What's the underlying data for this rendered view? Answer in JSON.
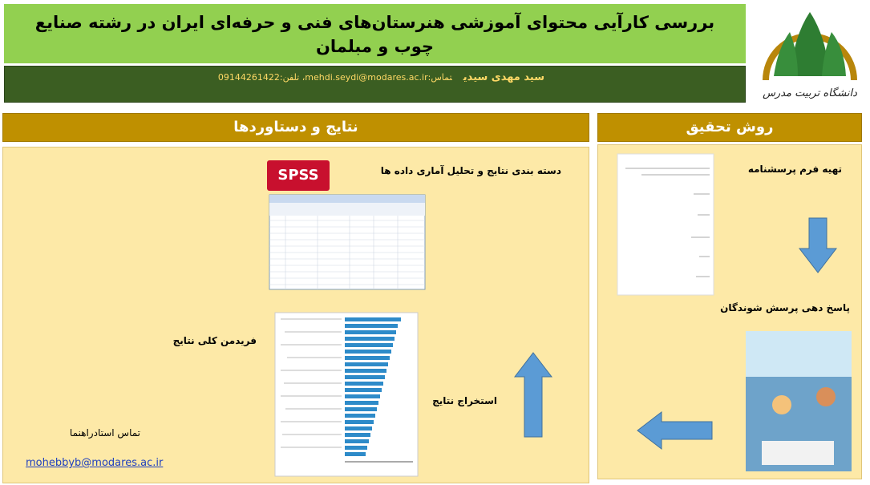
{
  "header": {
    "title": "بررسی کارآیی محتوای آموزشی هنرستان‌های فنی و حرفه‌ای ایران در رشته صنایع چوب و مبلمان",
    "author": "سید مهدی سیدی",
    "contact": "تماس:mehdi.seydi@modares.ac.ir، تلفن:09144261422",
    "logo_text": "دانشگاه تربیت مدرس"
  },
  "results": {
    "heading": "نتایج و دستاوردها",
    "spss_logo": "SPSS",
    "analysis": "دسته بندی نتایج و تحلیل آماری داده ها",
    "friedman": "فریدمن کلی نتایج",
    "extraction": "استخراج نتایج",
    "supervisor_contact": "تماس استادراهنما",
    "supervisor_email": "mohebbyb@modares.ac.ir"
  },
  "method": {
    "heading": "روش تحقیق",
    "steps": [
      "تهیه فرم پرسشنامه",
      "پاسخ دهی پرسش شوندگان"
    ]
  }
}
